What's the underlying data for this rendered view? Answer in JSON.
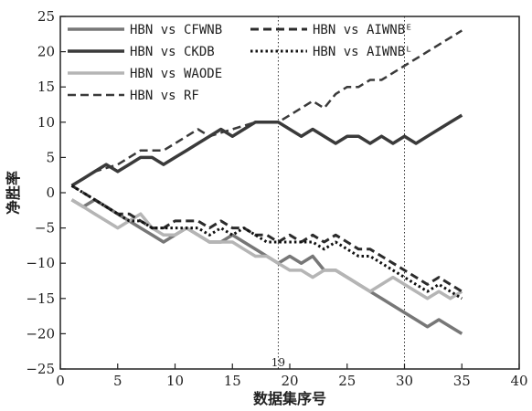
{
  "chart_data": {
    "type": "line",
    "xlabel": "数据集序号",
    "ylabel": "净胜率",
    "xlim": [
      0,
      40
    ],
    "ylim": [
      -25,
      25
    ],
    "xticks": [
      0,
      5,
      10,
      15,
      20,
      25,
      30,
      35,
      40
    ],
    "yticks": [
      -25,
      -20,
      -15,
      -10,
      -5,
      0,
      5,
      10,
      15,
      20,
      25
    ],
    "grid": false,
    "legend": "top-left",
    "vlines": [
      {
        "x": 19,
        "label": "19"
      },
      {
        "x": 30,
        "label": ""
      }
    ],
    "series": [
      {
        "name": "HBN vs CFWNB",
        "color": "#777777",
        "dash": "solid",
        "width": 3.5,
        "x": [
          1,
          2,
          3,
          4,
          5,
          6,
          7,
          8,
          9,
          10,
          11,
          12,
          13,
          14,
          15,
          16,
          17,
          18,
          19,
          20,
          21,
          22,
          23,
          24,
          25,
          26,
          27,
          28,
          29,
          30,
          31,
          32,
          33,
          34,
          35
        ],
        "y": [
          -1,
          -2,
          -1,
          -2,
          -3,
          -4,
          -5,
          -6,
          -7,
          -6,
          -5,
          -6,
          -7,
          -7,
          -6,
          -7,
          -8,
          -9,
          -10,
          -9,
          -10,
          -9,
          -11,
          -11,
          -12,
          -13,
          -14,
          -15,
          -16,
          -17,
          -18,
          -19,
          -18,
          -19,
          -20
        ]
      },
      {
        "name": "HBN vs CKDB",
        "color": "#3a3a3a",
        "dash": "solid",
        "width": 3.5,
        "x": [
          1,
          2,
          3,
          4,
          5,
          6,
          7,
          8,
          9,
          10,
          11,
          12,
          13,
          14,
          15,
          16,
          17,
          18,
          19,
          20,
          21,
          22,
          23,
          24,
          25,
          26,
          27,
          28,
          29,
          30,
          31,
          32,
          33,
          34,
          35
        ],
        "y": [
          1,
          2,
          3,
          4,
          3,
          4,
          5,
          5,
          4,
          5,
          6,
          7,
          8,
          9,
          8,
          9,
          10,
          10,
          10,
          9,
          8,
          9,
          8,
          7,
          8,
          8,
          7,
          8,
          7,
          8,
          7,
          8,
          9,
          10,
          11
        ]
      },
      {
        "name": "HBN vs WAODE",
        "color": "#b5b5b5",
        "dash": "solid",
        "width": 3.5,
        "x": [
          1,
          2,
          3,
          4,
          5,
          6,
          7,
          8,
          9,
          10,
          11,
          12,
          13,
          14,
          15,
          16,
          17,
          18,
          19,
          20,
          21,
          22,
          23,
          24,
          25,
          26,
          27,
          28,
          29,
          30,
          31,
          32,
          33,
          34,
          35
        ],
        "y": [
          -1,
          -2,
          -3,
          -4,
          -5,
          -4,
          -3,
          -5,
          -6,
          -6,
          -5,
          -6,
          -7,
          -7,
          -7,
          -8,
          -9,
          -9,
          -10,
          -11,
          -11,
          -12,
          -11,
          -11,
          -12,
          -13,
          -14,
          -13,
          -12,
          -13,
          -14,
          -15,
          -14,
          -15,
          -14
        ]
      },
      {
        "name": "HBN vs RF",
        "color": "#3a3a3a",
        "dash": "dash",
        "width": 2.5,
        "x": [
          1,
          3,
          5,
          7,
          9,
          10,
          12,
          13,
          15,
          17,
          18,
          19,
          20,
          21,
          22,
          23,
          24,
          25,
          26,
          27,
          28,
          29,
          30,
          31,
          32,
          33,
          34,
          35
        ],
        "y": [
          1,
          3,
          4,
          6,
          6,
          7,
          9,
          8,
          9,
          10,
          10,
          10,
          11,
          12,
          13,
          12,
          14,
          15,
          15,
          16,
          16,
          17,
          18,
          19,
          20,
          21,
          22,
          23
        ]
      },
      {
        "name": "HBN vs AIWNBᴱ",
        "color": "#2b2b2b",
        "dash": "dash",
        "width": 3,
        "x": [
          1,
          2,
          3,
          4,
          5,
          6,
          7,
          8,
          9,
          10,
          11,
          12,
          13,
          14,
          15,
          16,
          17,
          18,
          19,
          20,
          21,
          22,
          23,
          24,
          25,
          26,
          27,
          28,
          29,
          30,
          31,
          32,
          33,
          34,
          35
        ],
        "y": [
          1,
          0,
          -1,
          -2,
          -3,
          -3,
          -4,
          -5,
          -5,
          -4,
          -4,
          -4,
          -5,
          -4,
          -5,
          -5,
          -6,
          -6,
          -7,
          -6,
          -7,
          -6,
          -7,
          -6,
          -7,
          -8,
          -8,
          -9,
          -10,
          -11,
          -12,
          -13,
          -12,
          -13,
          -14
        ]
      },
      {
        "name": "HBN vs AIWNBᴸ",
        "color": "#111111",
        "dash": "dot",
        "width": 3,
        "x": [
          1,
          2,
          3,
          4,
          5,
          6,
          7,
          8,
          9,
          10,
          11,
          12,
          13,
          14,
          15,
          16,
          17,
          18,
          19,
          20,
          21,
          22,
          23,
          24,
          25,
          26,
          27,
          28,
          29,
          30,
          31,
          32,
          33,
          34,
          35
        ],
        "y": [
          1,
          0,
          -1,
          -2,
          -3,
          -4,
          -4,
          -5,
          -5,
          -5,
          -5,
          -5,
          -6,
          -5,
          -6,
          -5,
          -6,
          -7,
          -7,
          -7,
          -7,
          -7,
          -8,
          -7,
          -8,
          -9,
          -9,
          -10,
          -11,
          -12,
          -13,
          -14,
          -13,
          -14,
          -15
        ]
      }
    ]
  }
}
